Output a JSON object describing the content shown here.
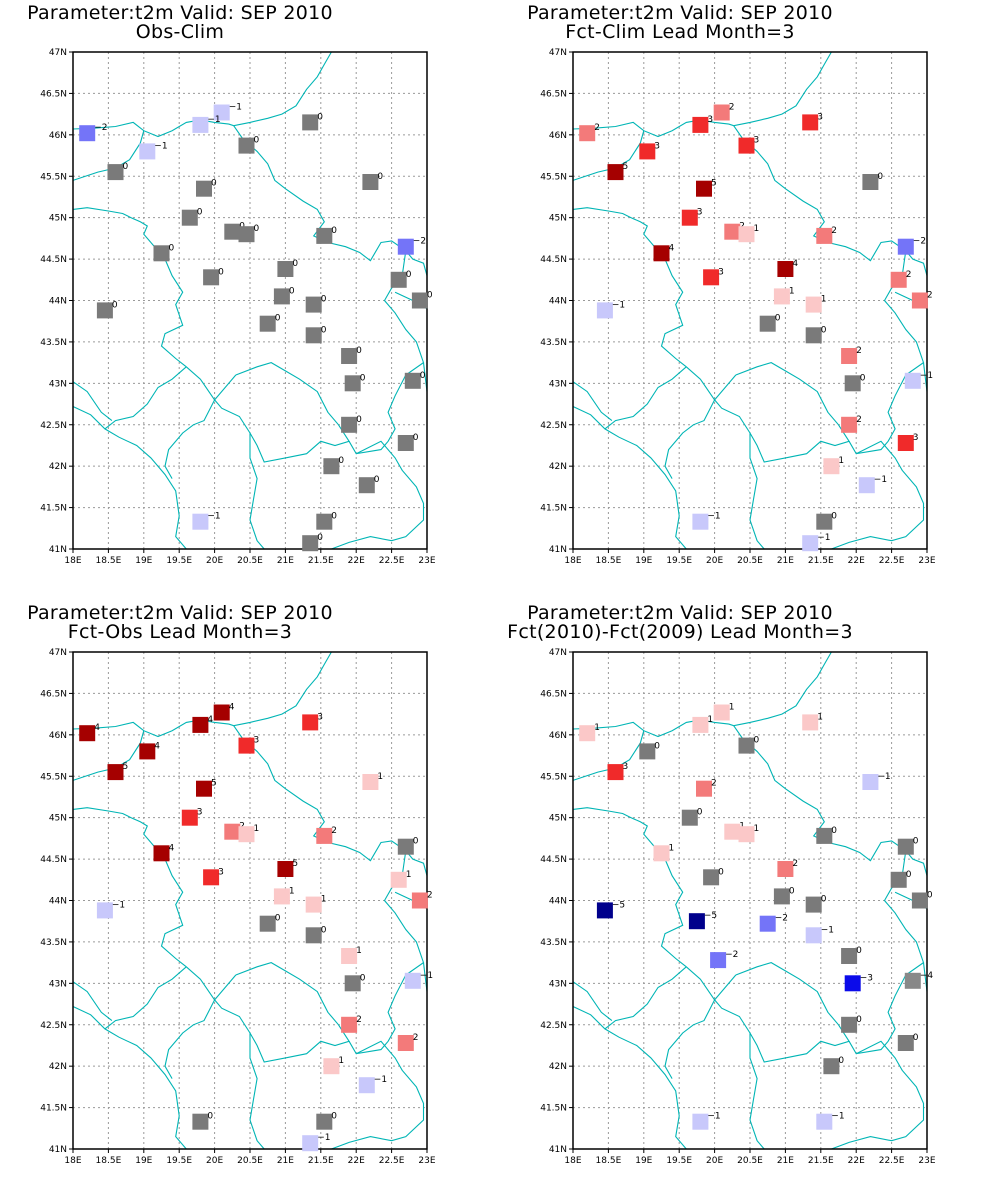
{
  "colors": {
    "-5": "#00008c",
    "-3": "#0b0bea",
    "-2": "#7474f8",
    "-1": "#c8c8fb",
    "0": "#7a7a7a",
    "1": "#fbc8c8",
    "2": "#f37a7a",
    "3": "#f02a2a",
    "4": "#a50000",
    "5": "#a50000",
    "border": "#00b5b5"
  },
  "chart_data": [
    {
      "type": "scatter",
      "title": "Parameter:t2m Valid: SEP 2010",
      "subtitle": "Obs-Clim",
      "xlim": [
        18,
        23
      ],
      "ylim": [
        41,
        47
      ],
      "xticks": [
        "18E",
        "18.5E",
        "19E",
        "19.5E",
        "20E",
        "20.5E",
        "21E",
        "21.5E",
        "22E",
        "22.5E",
        "23E"
      ],
      "yticks": [
        "41N",
        "41.5N",
        "42N",
        "42.5N",
        "43N",
        "43.5N",
        "44N",
        "44.5N",
        "45N",
        "45.5N",
        "46N",
        "46.5N",
        "47N"
      ],
      "grid": true,
      "points": [
        {
          "x": 18.2,
          "y": 46.02,
          "v": -2
        },
        {
          "x": 20.1,
          "y": 46.27,
          "v": -1
        },
        {
          "x": 19.8,
          "y": 46.12,
          "v": -1
        },
        {
          "x": 19.05,
          "y": 45.8,
          "v": -1
        },
        {
          "x": 18.6,
          "y": 45.55,
          "v": 0
        },
        {
          "x": 19.85,
          "y": 45.35,
          "v": 0
        },
        {
          "x": 20.45,
          "y": 45.87,
          "v": 0
        },
        {
          "x": 21.35,
          "y": 46.15,
          "v": 0
        },
        {
          "x": 22.2,
          "y": 45.43,
          "v": 0
        },
        {
          "x": 19.65,
          "y": 45.0,
          "v": 0
        },
        {
          "x": 20.25,
          "y": 44.83,
          "v": 0
        },
        {
          "x": 20.45,
          "y": 44.8,
          "v": 0
        },
        {
          "x": 21.55,
          "y": 44.78,
          "v": 0
        },
        {
          "x": 22.7,
          "y": 44.65,
          "v": -2
        },
        {
          "x": 19.25,
          "y": 44.57,
          "v": 0
        },
        {
          "x": 19.95,
          "y": 44.28,
          "v": 0
        },
        {
          "x": 21.0,
          "y": 44.38,
          "v": 0
        },
        {
          "x": 22.6,
          "y": 44.25,
          "v": 0
        },
        {
          "x": 20.95,
          "y": 44.05,
          "v": 0
        },
        {
          "x": 21.4,
          "y": 43.95,
          "v": 0
        },
        {
          "x": 18.45,
          "y": 43.88,
          "v": 0
        },
        {
          "x": 22.9,
          "y": 44.0,
          "v": 0
        },
        {
          "x": 20.75,
          "y": 43.72,
          "v": 0
        },
        {
          "x": 21.4,
          "y": 43.58,
          "v": 0
        },
        {
          "x": 21.9,
          "y": 43.33,
          "v": 0
        },
        {
          "x": 21.95,
          "y": 43.0,
          "v": 0
        },
        {
          "x": 22.8,
          "y": 43.03,
          "v": 0
        },
        {
          "x": 21.9,
          "y": 42.5,
          "v": 0
        },
        {
          "x": 22.7,
          "y": 42.28,
          "v": 0
        },
        {
          "x": 21.65,
          "y": 42.0,
          "v": 0
        },
        {
          "x": 22.15,
          "y": 41.77,
          "v": 0
        },
        {
          "x": 19.8,
          "y": 41.33,
          "v": -1
        },
        {
          "x": 21.55,
          "y": 41.33,
          "v": 0
        },
        {
          "x": 21.35,
          "y": 41.07,
          "v": 0
        }
      ]
    },
    {
      "type": "scatter",
      "title": "Parameter:t2m Valid: SEP 2010",
      "subtitle": "Fct-Clim Lead Month=3",
      "xlim": [
        18,
        23
      ],
      "ylim": [
        41,
        47
      ],
      "xticks": [
        "18E",
        "18.5E",
        "19E",
        "19.5E",
        "20E",
        "20.5E",
        "21E",
        "21.5E",
        "22E",
        "22.5E",
        "23E"
      ],
      "yticks": [
        "41N",
        "41.5N",
        "42N",
        "42.5N",
        "43N",
        "43.5N",
        "44N",
        "44.5N",
        "45N",
        "45.5N",
        "46N",
        "46.5N",
        "47N"
      ],
      "grid": true,
      "points": [
        {
          "x": 18.2,
          "y": 46.02,
          "v": 2
        },
        {
          "x": 20.1,
          "y": 46.27,
          "v": 2
        },
        {
          "x": 19.8,
          "y": 46.12,
          "v": 3
        },
        {
          "x": 19.05,
          "y": 45.8,
          "v": 3
        },
        {
          "x": 18.6,
          "y": 45.55,
          "v": 5
        },
        {
          "x": 19.85,
          "y": 45.35,
          "v": 5
        },
        {
          "x": 20.45,
          "y": 45.87,
          "v": 3
        },
        {
          "x": 21.35,
          "y": 46.15,
          "v": 3
        },
        {
          "x": 22.2,
          "y": 45.43,
          "v": 0
        },
        {
          "x": 19.65,
          "y": 45.0,
          "v": 3
        },
        {
          "x": 20.25,
          "y": 44.83,
          "v": 2
        },
        {
          "x": 20.45,
          "y": 44.8,
          "v": 1
        },
        {
          "x": 21.55,
          "y": 44.78,
          "v": 2
        },
        {
          "x": 22.7,
          "y": 44.65,
          "v": -2
        },
        {
          "x": 19.25,
          "y": 44.57,
          "v": 4
        },
        {
          "x": 19.95,
          "y": 44.28,
          "v": 3
        },
        {
          "x": 21.0,
          "y": 44.38,
          "v": 4
        },
        {
          "x": 22.6,
          "y": 44.25,
          "v": 2
        },
        {
          "x": 20.95,
          "y": 44.05,
          "v": 1
        },
        {
          "x": 21.4,
          "y": 43.95,
          "v": 1
        },
        {
          "x": 18.45,
          "y": 43.88,
          "v": -1
        },
        {
          "x": 22.9,
          "y": 44.0,
          "v": 2
        },
        {
          "x": 20.75,
          "y": 43.72,
          "v": 0
        },
        {
          "x": 21.4,
          "y": 43.58,
          "v": 0
        },
        {
          "x": 21.9,
          "y": 43.33,
          "v": 2
        },
        {
          "x": 21.95,
          "y": 43.0,
          "v": 0
        },
        {
          "x": 22.8,
          "y": 43.03,
          "v": -1
        },
        {
          "x": 21.9,
          "y": 42.5,
          "v": 2
        },
        {
          "x": 22.7,
          "y": 42.28,
          "v": 3
        },
        {
          "x": 21.65,
          "y": 42.0,
          "v": 1
        },
        {
          "x": 22.15,
          "y": 41.77,
          "v": -1
        },
        {
          "x": 19.8,
          "y": 41.33,
          "v": -1
        },
        {
          "x": 21.55,
          "y": 41.33,
          "v": 0
        },
        {
          "x": 21.35,
          "y": 41.07,
          "v": -1
        }
      ]
    },
    {
      "type": "scatter",
      "title": "Parameter:t2m Valid: SEP 2010",
      "subtitle": "Fct-Obs Lead Month=3",
      "xlim": [
        18,
        23
      ],
      "ylim": [
        41,
        47
      ],
      "xticks": [
        "18E",
        "18.5E",
        "19E",
        "19.5E",
        "20E",
        "20.5E",
        "21E",
        "21.5E",
        "22E",
        "22.5E",
        "23E"
      ],
      "yticks": [
        "41N",
        "41.5N",
        "42N",
        "42.5N",
        "43N",
        "43.5N",
        "44N",
        "44.5N",
        "45N",
        "45.5N",
        "46N",
        "46.5N",
        "47N"
      ],
      "grid": true,
      "points": [
        {
          "x": 18.2,
          "y": 46.02,
          "v": 4
        },
        {
          "x": 20.1,
          "y": 46.27,
          "v": 4
        },
        {
          "x": 19.8,
          "y": 46.12,
          "v": 4
        },
        {
          "x": 19.05,
          "y": 45.8,
          "v": 4
        },
        {
          "x": 18.6,
          "y": 45.55,
          "v": 5
        },
        {
          "x": 19.85,
          "y": 45.35,
          "v": 5
        },
        {
          "x": 20.45,
          "y": 45.87,
          "v": 3
        },
        {
          "x": 21.35,
          "y": 46.15,
          "v": 3
        },
        {
          "x": 22.2,
          "y": 45.43,
          "v": 1
        },
        {
          "x": 19.65,
          "y": 45.0,
          "v": 3
        },
        {
          "x": 20.25,
          "y": 44.83,
          "v": 2
        },
        {
          "x": 20.45,
          "y": 44.8,
          "v": 1
        },
        {
          "x": 21.55,
          "y": 44.78,
          "v": 2
        },
        {
          "x": 22.7,
          "y": 44.65,
          "v": 0
        },
        {
          "x": 19.25,
          "y": 44.57,
          "v": 4
        },
        {
          "x": 19.95,
          "y": 44.28,
          "v": 3
        },
        {
          "x": 21.0,
          "y": 44.38,
          "v": 5
        },
        {
          "x": 22.6,
          "y": 44.25,
          "v": 1
        },
        {
          "x": 20.95,
          "y": 44.05,
          "v": 1
        },
        {
          "x": 21.4,
          "y": 43.95,
          "v": 1
        },
        {
          "x": 18.45,
          "y": 43.88,
          "v": -1
        },
        {
          "x": 22.9,
          "y": 44.0,
          "v": 2
        },
        {
          "x": 20.75,
          "y": 43.72,
          "v": 0
        },
        {
          "x": 21.4,
          "y": 43.58,
          "v": 0
        },
        {
          "x": 21.9,
          "y": 43.33,
          "v": 1
        },
        {
          "x": 21.95,
          "y": 43.0,
          "v": 0
        },
        {
          "x": 22.8,
          "y": 43.03,
          "v": -1
        },
        {
          "x": 21.9,
          "y": 42.5,
          "v": 2
        },
        {
          "x": 22.7,
          "y": 42.28,
          "v": 2
        },
        {
          "x": 21.65,
          "y": 42.0,
          "v": 1
        },
        {
          "x": 22.15,
          "y": 41.77,
          "v": -1
        },
        {
          "x": 19.8,
          "y": 41.33,
          "v": 0
        },
        {
          "x": 21.55,
          "y": 41.33,
          "v": 0
        },
        {
          "x": 21.35,
          "y": 41.07,
          "v": -1
        }
      ]
    },
    {
      "type": "scatter",
      "title": "Parameter:t2m Valid: SEP 2010",
      "subtitle": "Fct(2010)-Fct(2009) Lead Month=3",
      "xlim": [
        18,
        23
      ],
      "ylim": [
        41,
        47
      ],
      "xticks": [
        "18E",
        "18.5E",
        "19E",
        "19.5E",
        "20E",
        "20.5E",
        "21E",
        "21.5E",
        "22E",
        "22.5E",
        "23E"
      ],
      "yticks": [
        "41N",
        "41.5N",
        "42N",
        "42.5N",
        "43N",
        "43.5N",
        "44N",
        "44.5N",
        "45N",
        "45.5N",
        "46N",
        "46.5N",
        "47N"
      ],
      "grid": true,
      "points": [
        {
          "x": 18.2,
          "y": 46.02,
          "v": 1
        },
        {
          "x": 20.1,
          "y": 46.27,
          "v": 1
        },
        {
          "x": 19.8,
          "y": 46.12,
          "v": 1
        },
        {
          "x": 19.05,
          "y": 45.8,
          "v": 0
        },
        {
          "x": 18.6,
          "y": 45.55,
          "v": 3
        },
        {
          "x": 19.85,
          "y": 45.35,
          "v": 2
        },
        {
          "x": 20.45,
          "y": 45.87,
          "v": 0
        },
        {
          "x": 21.35,
          "y": 46.15,
          "v": 1
        },
        {
          "x": 22.2,
          "y": 45.43,
          "v": -1
        },
        {
          "x": 19.65,
          "y": 45.0,
          "v": 0
        },
        {
          "x": 20.25,
          "y": 44.83,
          "v": 1
        },
        {
          "x": 20.45,
          "y": 44.8,
          "v": 1
        },
        {
          "x": 21.55,
          "y": 44.78,
          "v": 0
        },
        {
          "x": 22.7,
          "y": 44.65,
          "v": 0
        },
        {
          "x": 19.25,
          "y": 44.57,
          "v": 1
        },
        {
          "x": 19.95,
          "y": 44.28,
          "v": 0
        },
        {
          "x": 21.0,
          "y": 44.38,
          "v": 2
        },
        {
          "x": 22.6,
          "y": 44.25,
          "v": 0
        },
        {
          "x": 20.95,
          "y": 44.05,
          "v": 0
        },
        {
          "x": 21.4,
          "y": 43.95,
          "v": 0
        },
        {
          "x": 18.45,
          "y": 43.88,
          "v": -5
        },
        {
          "x": 22.9,
          "y": 44.0,
          "v": 0
        },
        {
          "x": 20.75,
          "y": 43.72,
          "v": -2
        },
        {
          "x": 19.75,
          "y": 43.75,
          "v": -5
        },
        {
          "x": 21.4,
          "y": 43.58,
          "v": -1
        },
        {
          "x": 21.9,
          "y": 43.33,
          "v": 0
        },
        {
          "x": 20.05,
          "y": 43.28,
          "v": -2
        },
        {
          "x": 21.95,
          "y": 43.0,
          "v": -3
        },
        {
          "x": 22.8,
          "y": 43.03,
          "v": -4
        },
        {
          "x": 21.9,
          "y": 42.5,
          "v": 0
        },
        {
          "x": 22.7,
          "y": 42.28,
          "v": 0
        },
        {
          "x": 21.65,
          "y": 42.0,
          "v": 0
        },
        {
          "x": 19.8,
          "y": 41.33,
          "v": -1
        },
        {
          "x": 21.55,
          "y": 41.33,
          "v": -1
        }
      ]
    }
  ]
}
